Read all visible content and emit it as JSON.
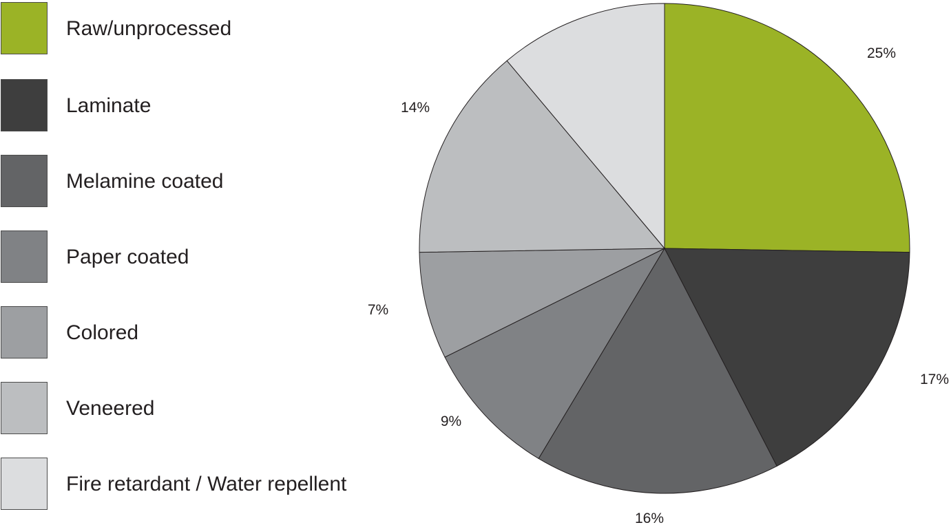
{
  "chart_data": {
    "type": "pie",
    "slices": [
      {
        "label": "Raw/unprocessed",
        "value": 25,
        "value_label": "25%",
        "color": "#9bb326"
      },
      {
        "label": "Laminate",
        "value": 17,
        "value_label": "17%",
        "color": "#3e3e3e"
      },
      {
        "label": "Melamine coated",
        "value": 16,
        "value_label": "16%",
        "color": "#636466"
      },
      {
        "label": "Paper coated",
        "value": 9,
        "value_label": "9%",
        "color": "#808285"
      },
      {
        "label": "Colored",
        "value": 7,
        "value_label": "7%",
        "color": "#9d9fa2"
      },
      {
        "label": "Veneered",
        "value": 14,
        "value_label": "14%",
        "color": "#bcbec0"
      },
      {
        "label": "Fire retardant / Water repellent",
        "value": 11,
        "value_label": "",
        "color": "#dcdddf"
      }
    ],
    "legend_position": "left",
    "start_angle": "12 o'clock",
    "direction": "clockwise"
  }
}
